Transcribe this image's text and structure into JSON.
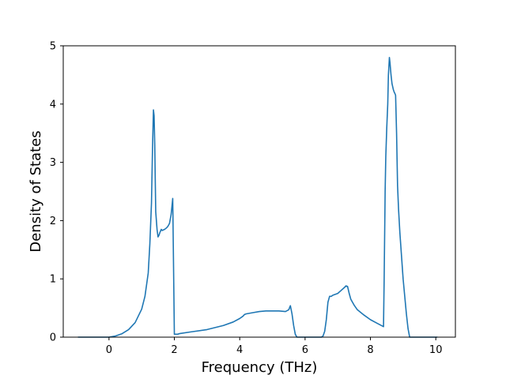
{
  "chart_data": {
    "type": "line",
    "title": "",
    "xlabel": "Frequency (THz)",
    "ylabel": "Density of States",
    "xlim": [
      -1.4,
      10.6
    ],
    "ylim": [
      0,
      5
    ],
    "xticks": [
      0,
      2,
      4,
      6,
      8,
      10
    ],
    "yticks": [
      0,
      1,
      2,
      3,
      4,
      5
    ],
    "grid": false,
    "legend": "none",
    "colors": {
      "line": "#1f77b4",
      "axes": "#000000",
      "background": "#ffffff"
    },
    "series": [
      {
        "x": [
          -0.95,
          -0.5,
          0.0,
          0.2,
          0.4,
          0.6,
          0.8,
          1.0,
          1.1,
          1.2,
          1.25,
          1.3,
          1.33,
          1.36,
          1.38,
          1.4,
          1.43,
          1.47,
          1.5,
          1.53,
          1.56,
          1.6,
          1.63,
          1.66,
          1.7,
          1.75,
          1.8,
          1.85,
          1.9,
          1.95,
          2.0,
          2.03,
          2.05,
          2.07,
          2.1,
          2.15,
          2.5,
          3.0,
          3.5,
          3.8,
          4.0,
          4.1,
          4.15,
          4.2,
          4.4,
          4.6,
          4.8,
          5.0,
          5.2,
          5.4,
          5.5,
          5.55,
          5.6,
          5.65,
          5.7,
          5.75,
          5.8,
          5.9,
          6.0,
          6.2,
          6.4,
          6.5,
          6.55,
          6.6,
          6.65,
          6.7,
          6.75,
          6.8,
          6.85,
          6.9,
          7.0,
          7.1,
          7.2,
          7.25,
          7.3,
          7.35,
          7.4,
          7.5,
          7.6,
          7.8,
          8.0,
          8.2,
          8.4,
          8.42,
          8.45,
          8.47,
          8.5,
          8.53,
          8.55,
          8.58,
          8.6,
          8.63,
          8.66,
          8.7,
          8.73,
          8.75,
          8.77,
          8.8,
          8.83,
          8.86,
          8.9,
          8.95,
          9.0,
          9.05,
          9.1,
          9.15,
          9.2,
          9.3,
          9.6,
          10.05
        ],
        "y": [
          0.0,
          0.0,
          0.0,
          0.02,
          0.06,
          0.13,
          0.25,
          0.48,
          0.7,
          1.1,
          1.6,
          2.3,
          3.2,
          3.9,
          3.8,
          3.3,
          2.15,
          1.85,
          1.72,
          1.75,
          1.8,
          1.85,
          1.83,
          1.84,
          1.85,
          1.87,
          1.9,
          1.95,
          2.1,
          2.38,
          0.05,
          0.05,
          0.05,
          0.05,
          0.05,
          0.06,
          0.09,
          0.13,
          0.2,
          0.26,
          0.32,
          0.36,
          0.39,
          0.4,
          0.42,
          0.44,
          0.45,
          0.45,
          0.45,
          0.44,
          0.47,
          0.54,
          0.4,
          0.2,
          0.05,
          0.0,
          0.0,
          0.0,
          0.0,
          0.0,
          0.0,
          0.0,
          0.02,
          0.1,
          0.3,
          0.6,
          0.7,
          0.7,
          0.72,
          0.73,
          0.75,
          0.8,
          0.85,
          0.88,
          0.87,
          0.75,
          0.65,
          0.55,
          0.47,
          0.38,
          0.3,
          0.24,
          0.18,
          1.0,
          2.5,
          3.1,
          3.6,
          4.0,
          4.5,
          4.8,
          4.7,
          4.5,
          4.35,
          4.25,
          4.2,
          4.18,
          4.15,
          3.5,
          2.6,
          2.2,
          1.8,
          1.4,
          1.0,
          0.7,
          0.4,
          0.15,
          0.0,
          0.0,
          0.0,
          0.0
        ]
      }
    ]
  }
}
